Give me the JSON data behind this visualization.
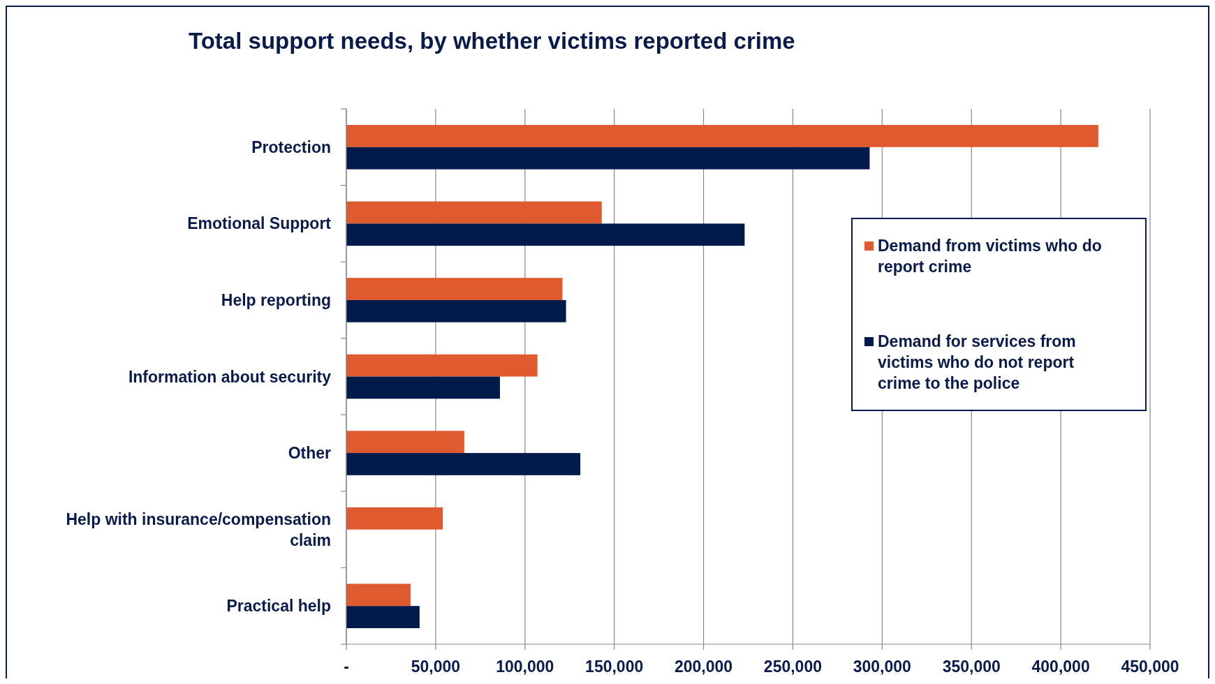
{
  "chart_data": {
    "type": "bar",
    "orientation": "horizontal",
    "title": "Total support needs, by whether victims reported crime",
    "categories": [
      "Protection",
      "Emotional Support",
      "Help reporting",
      "Information about security",
      "Other",
      "Help with insurance/compensation claim",
      "Practical help"
    ],
    "series": [
      {
        "name": "Demand from victims who do report crime",
        "color": "#e05a2f",
        "values": [
          421000,
          143000,
          121000,
          107000,
          66000,
          54000,
          36000
        ]
      },
      {
        "name": "Demand for services from victims who do not report crime to the police",
        "color": "#001a4a",
        "values": [
          293000,
          223000,
          123000,
          86000,
          131000,
          null,
          41000
        ]
      }
    ],
    "xlim": [
      0,
      450000
    ],
    "xticks": [
      {
        "value": 0,
        "label": "-"
      },
      {
        "value": 50000,
        "label": "50,000"
      },
      {
        "value": 100000,
        "label": "100,000"
      },
      {
        "value": 150000,
        "label": "150,000"
      },
      {
        "value": 200000,
        "label": "200,000"
      },
      {
        "value": 250000,
        "label": "250,000"
      },
      {
        "value": 300000,
        "label": "300,000"
      },
      {
        "value": 350000,
        "label": "350,000"
      },
      {
        "value": 400000,
        "label": "400,000"
      },
      {
        "value": 450000,
        "label": "450,000"
      }
    ],
    "grid": "x",
    "legend": "right"
  }
}
